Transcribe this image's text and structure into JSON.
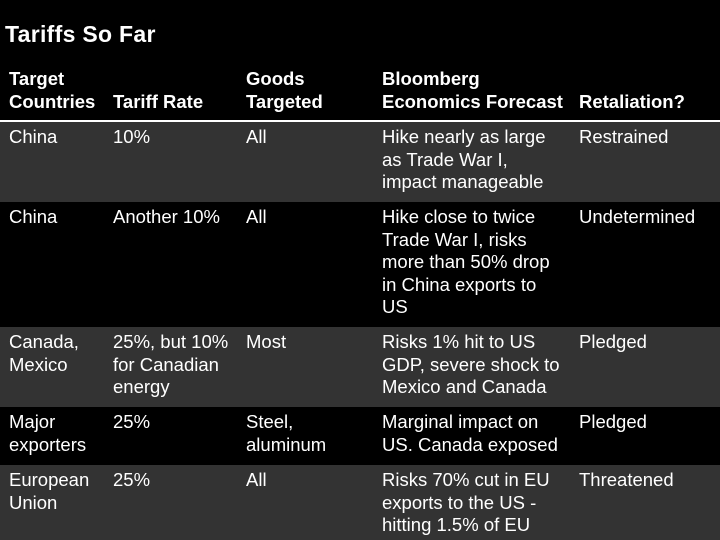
{
  "title": "Tariffs So Far",
  "chart_data": {
    "type": "table",
    "columns": [
      "Target\nCountries",
      "Tariff Rate",
      "Goods\nTargeted",
      "Bloomberg\nEconomics Forecast",
      "Retaliation?"
    ],
    "rows": [
      [
        "China",
        "10%",
        "All",
        "Hike nearly as large\nas Trade War I,\nimpact manageable",
        "Restrained"
      ],
      [
        "China",
        "Another 10%",
        "All",
        "Hike close to twice\nTrade War I, risks\nmore than 50% drop\nin China exports to\nUS",
        "Undetermined"
      ],
      [
        "Canada,\nMexico",
        "25%, but 10%\nfor Canadian\nenergy",
        "Most",
        "Risks 1% hit to US\nGDP, severe shock to\nMexico and Canada",
        "Pledged"
      ],
      [
        "Major\nexporters",
        "25%",
        "Steel,\naluminum",
        "Marginal impact on\nUS. Canada exposed",
        "Pledged"
      ],
      [
        "European\nUnion",
        "25%",
        "All",
        "Risks 70% cut in EU\nexports to the US -\nhitting 1.5% of EU",
        "Threatened"
      ]
    ]
  },
  "colors": {
    "background": "#000000",
    "row_alt": "#333333",
    "text": "#ffffff"
  }
}
